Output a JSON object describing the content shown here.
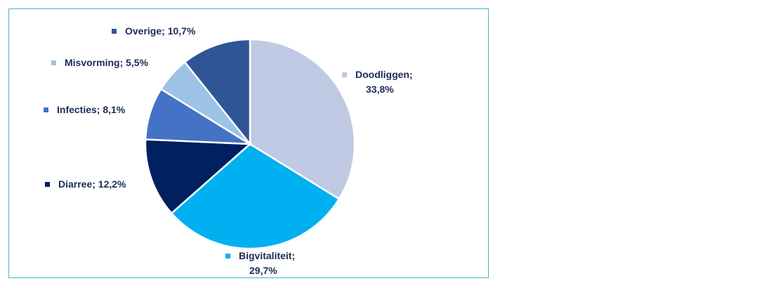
{
  "chart_data": {
    "type": "pie",
    "start_angle_deg": 0,
    "direction": "clockwise",
    "slices": [
      {
        "name": "Doodliggen",
        "value": 33.8,
        "label_lines": [
          "Doodliggen;",
          "33,8%"
        ],
        "color": "#c0c9e4"
      },
      {
        "name": "Bigvitaliteit",
        "value": 29.7,
        "label_lines": [
          "Bigvitaliteit;",
          "29,7%"
        ],
        "color": "#00b0f0"
      },
      {
        "name": "Diarree",
        "value": 12.2,
        "label_lines": [
          "Diarree; 12,2%"
        ],
        "color": "#002060"
      },
      {
        "name": "Infecties",
        "value": 8.1,
        "label_lines": [
          "Infecties; 8,1%"
        ],
        "color": "#4472c4"
      },
      {
        "name": "Misvorming",
        "value": 5.5,
        "label_lines": [
          "Misvorming; 5,5%"
        ],
        "color": "#9dc3e6"
      },
      {
        "name": "Overige",
        "value": 10.7,
        "label_lines": [
          "Overige; 10,7%"
        ],
        "color": "#2f5597"
      }
    ]
  }
}
